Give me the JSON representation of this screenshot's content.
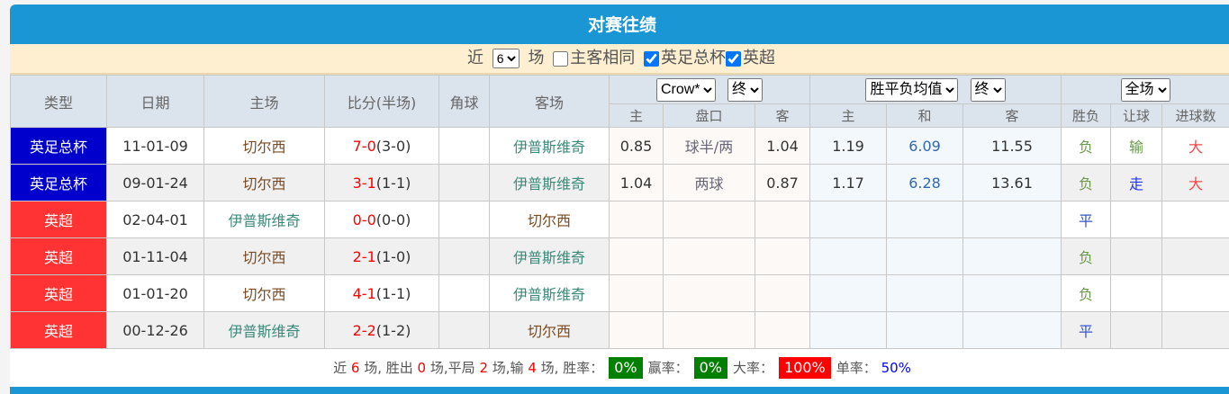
{
  "title": "对赛往绩",
  "filter": {
    "near": "近",
    "count": "6",
    "unit": "场",
    "same_home_away": "主客相同",
    "same_checked": false,
    "league1": "英足总杯",
    "league1_checked": true,
    "league2": "英超",
    "league2_checked": true
  },
  "headers": {
    "type": "类型",
    "date": "日期",
    "home": "主场",
    "score": "比分(半场)",
    "corner": "角球",
    "away": "客场",
    "company": "Crow*",
    "asian_stage": "终",
    "odds_type": "胜平负均值",
    "euro_stage": "终",
    "scope": "全场",
    "sub": [
      "主",
      "盘口",
      "客",
      "主",
      "和",
      "客",
      "胜负",
      "让球",
      "进球数"
    ]
  },
  "rows": [
    {
      "type": "英足总杯",
      "kind": "cup",
      "date": "11-01-09",
      "home": "切尔西",
      "ft": "7-0",
      "ht": "(3-0)",
      "corner": "",
      "away": "伊普斯维奇",
      "ah": "0.85",
      "line": "球半/两",
      "aa": "1.04",
      "eh": "1.19",
      "ed": "6.09",
      "ea": "11.55",
      "wl": "负",
      "hc": "输",
      "ou": "大"
    },
    {
      "type": "英足总杯",
      "kind": "cup",
      "date": "09-01-24",
      "home": "切尔西",
      "ft": "3-1",
      "ht": "(1-1)",
      "corner": "",
      "away": "伊普斯维奇",
      "ah": "1.04",
      "line": "两球",
      "aa": "0.87",
      "eh": "1.17",
      "ed": "6.28",
      "ea": "13.61",
      "wl": "负",
      "hc": "走",
      "ou": "大"
    },
    {
      "type": "英超",
      "kind": "lg",
      "date": "02-04-01",
      "home": "伊普斯维奇",
      "ft": "0-0",
      "ht": "(0-0)",
      "corner": "",
      "away": "切尔西",
      "ah": "",
      "line": "",
      "aa": "",
      "eh": "",
      "ed": "",
      "ea": "",
      "wl": "平",
      "hc": "",
      "ou": ""
    },
    {
      "type": "英超",
      "kind": "lg",
      "date": "01-11-04",
      "home": "切尔西",
      "ft": "2-1",
      "ht": "(1-0)",
      "corner": "",
      "away": "伊普斯维奇",
      "ah": "",
      "line": "",
      "aa": "",
      "eh": "",
      "ed": "",
      "ea": "",
      "wl": "负",
      "hc": "",
      "ou": ""
    },
    {
      "type": "英超",
      "kind": "lg",
      "date": "01-01-20",
      "home": "切尔西",
      "ft": "4-1",
      "ht": "(1-1)",
      "corner": "",
      "away": "伊普斯维奇",
      "ah": "",
      "line": "",
      "aa": "",
      "eh": "",
      "ed": "",
      "ea": "",
      "wl": "负",
      "hc": "",
      "ou": ""
    },
    {
      "type": "英超",
      "kind": "lg",
      "date": "00-12-26",
      "home": "伊普斯维奇",
      "ft": "2-2",
      "ht": "(1-2)",
      "corner": "",
      "away": "切尔西",
      "ah": "",
      "line": "",
      "aa": "",
      "eh": "",
      "ed": "",
      "ea": "",
      "wl": "平",
      "hc": "",
      "ou": ""
    }
  ],
  "summary": {
    "p1": "近",
    "games": "6",
    "p2": "场, 胜出",
    "wins": "0",
    "p3": "场,平局",
    "draws": "2",
    "p4": "场,输",
    "losses": "4",
    "p5": "场, 胜率：",
    "win_rate": "0%",
    "p6": "赢率：",
    "cover_rate": "0%",
    "p7": "大率：",
    "over_rate": "100%",
    "p8": "单率：",
    "odd_rate": "50%"
  },
  "colors": {
    "title_bar": "#1a96d5",
    "cup": "#0000cc",
    "league": "#ff3333",
    "good": "#008000",
    "bad": "#ff0000"
  }
}
